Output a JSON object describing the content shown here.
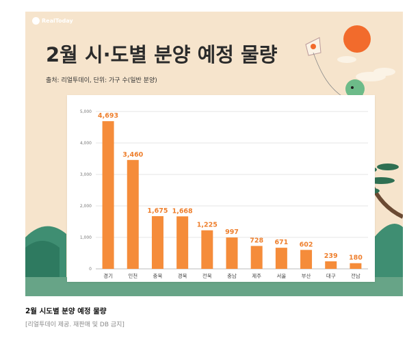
{
  "header": {
    "logo_text": "RealToday",
    "title": "2월 시·도별 분양 예정 물량",
    "source": "출처: 리얼투데이, 단위: 가구 수(일반 분양)"
  },
  "caption": {
    "title": "2월 시도별 분양 예정 물량",
    "note": "[리얼투데이 제공. 재판매 및 DB 금지]"
  },
  "colors": {
    "bar": "#f58c3a",
    "value_label": "#ee7f2d",
    "background": "#f6e4cc",
    "sun": "#f26b2c"
  },
  "chart_data": {
    "type": "bar",
    "title": "2월 시·도별 분양 예정 물량",
    "categories": [
      "경기",
      "인천",
      "충북",
      "경북",
      "전북",
      "충남",
      "제주",
      "서울",
      "부산",
      "대구",
      "전남"
    ],
    "values": [
      4693,
      3460,
      1675,
      1668,
      1225,
      997,
      728,
      671,
      602,
      239,
      180
    ],
    "value_labels": [
      "4,693",
      "3,460",
      "1,675",
      "1,668",
      "1,225",
      "997",
      "728",
      "671",
      "602",
      "239",
      "180"
    ],
    "ylim": [
      0,
      5000
    ],
    "yticks": [
      0,
      1000,
      2000,
      3000,
      4000,
      5000
    ],
    "ytick_labels": [
      "0",
      "1,000",
      "2,000",
      "3,000",
      "4,000",
      "5,000"
    ],
    "grid": true,
    "legend": "none"
  }
}
